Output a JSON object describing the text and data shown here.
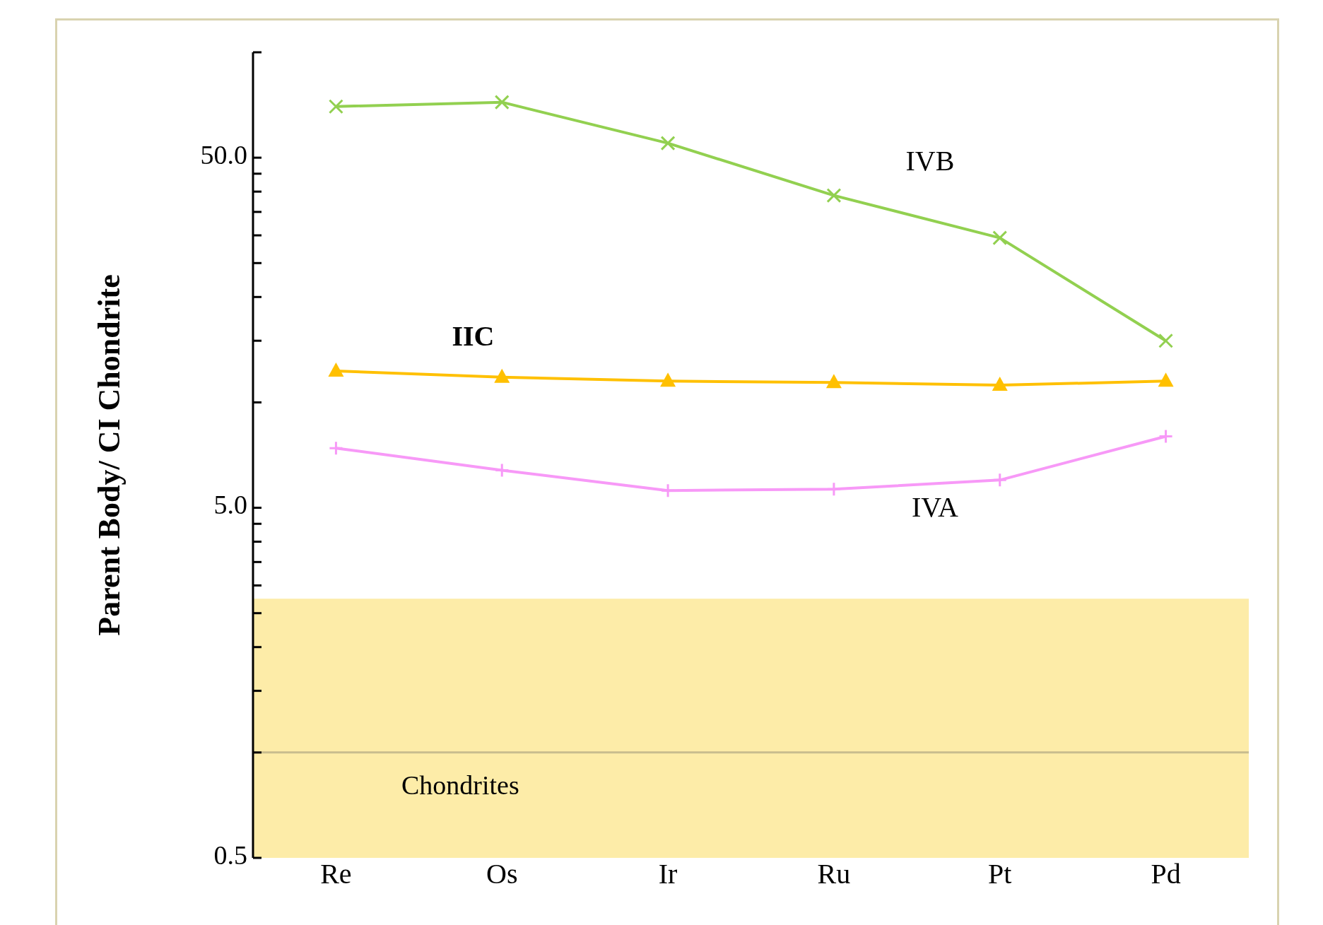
{
  "chart_data": {
    "type": "line",
    "ylabel": "Parent Body/ CI Chondrite",
    "log": "y",
    "categories": [
      "Re",
      "Os",
      "Ir",
      "Ru",
      "Pt",
      "Pd"
    ],
    "series": [
      {
        "name": "IVB",
        "color": "#92d050",
        "marker": "x",
        "values": [
          70,
          72,
          55,
          39,
          29.5,
          15
        ]
      },
      {
        "name": "IIC",
        "color": "#ffc000",
        "marker": "triangle",
        "values": [
          12.3,
          11.8,
          11.5,
          11.4,
          11.2,
          11.5
        ]
      },
      {
        "name": "IVA",
        "color": "#f799f7",
        "marker": "cross",
        "values": [
          7.4,
          6.4,
          5.6,
          5.65,
          6.0,
          8.0
        ]
      }
    ],
    "ylim": [
      0.5,
      100
    ],
    "yticks": [
      {
        "value": 0.5,
        "label": "0.5"
      },
      {
        "value": 1,
        "label": null
      },
      {
        "value": 1.5,
        "label": null
      },
      {
        "value": 2,
        "label": null
      },
      {
        "value": 2.5,
        "label": null
      },
      {
        "value": 3,
        "label": null
      },
      {
        "value": 3.5,
        "label": null
      },
      {
        "value": 4,
        "label": null
      },
      {
        "value": 4.5,
        "label": null
      },
      {
        "value": 5,
        "label": "5.0"
      },
      {
        "value": 10,
        "label": null
      },
      {
        "value": 15,
        "label": null
      },
      {
        "value": 20,
        "label": null
      },
      {
        "value": 25,
        "label": null
      },
      {
        "value": 30,
        "label": null
      },
      {
        "value": 35,
        "label": null
      },
      {
        "value": 40,
        "label": null
      },
      {
        "value": 45,
        "label": null
      },
      {
        "value": 50,
        "label": "50.0"
      },
      {
        "value": 100,
        "label": null
      }
    ],
    "ref_lines": [
      {
        "axis": "y",
        "value": 1,
        "label": null,
        "color": "#c8bd8e"
      }
    ],
    "bands": [
      {
        "axis": "y",
        "from": 0.5,
        "to": 2.75,
        "label": "Chondrites",
        "color": "#fdeca8"
      }
    ]
  }
}
